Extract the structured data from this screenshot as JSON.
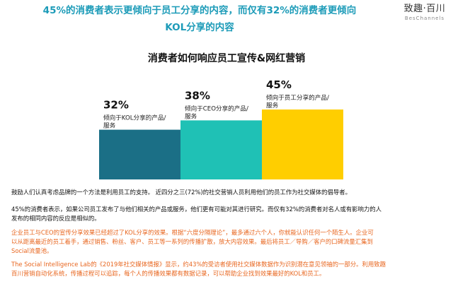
{
  "headline": {
    "line1": "45%的消费者表示更倾向于员工分享的内容，而仅有32%的消费者更倾向",
    "line2": "KOL分享的内容"
  },
  "logo": {
    "main": "致趣·百川",
    "sub": "BesChannels"
  },
  "chart_data": {
    "type": "bar",
    "title": "消费者如何响应员工宣传&网红营销",
    "categories": [
      "倾向于KOL分享的产品/服务",
      "倾向于CEO分享的产品/服务",
      "倾向于员工分享的产品/服务"
    ],
    "values": [
      32,
      38,
      45
    ],
    "value_labels": [
      "32%",
      "38%",
      "45%"
    ],
    "category_label_lines": [
      [
        "倾向于KOL分享的产品/",
        "服务"
      ],
      [
        "倾向于CEO分享的产品/",
        "服务"
      ],
      [
        "倾向于员工分享的产品/",
        "服务"
      ]
    ],
    "colors": [
      "#1b6f86",
      "#1fc1b5",
      "#ffce00"
    ],
    "ylim": [
      0,
      50
    ],
    "grid": false,
    "legend": "none",
    "xlabel": "",
    "ylabel": ""
  },
  "paragraphs": [
    {
      "color": "dark",
      "lines": [
        "鼓励人们认真考虑品牌的一个方法是利用员工的支持。 近四分之三(72%)的社交营销人员利用他们的员工作为社交媒体的倡导者。"
      ]
    },
    {
      "color": "dark",
      "lines": [
        "45%的消费者表示，如果公司员工发布了与他们相关的产品或服务，他们更有可能对其进行研究。而仅有32%的消费者对名人或有影响力的人",
        "发布的相同内容的反应是相似的。"
      ]
    },
    {
      "color": "orange",
      "lines": [
        "企业员工与CEO的宣传分享效果已经超过了KOL分享的效果。根据“六度分隔理论”，最多通过六个人，你就能认识任何一个陌生人。企业可",
        "以从距离最近的员工着手，通过销售、粉丝、客户、员工等一系列的传播扩散，放大内容效果。最后将员工／导购／客户的口碑流量汇集到",
        "Social流量池。"
      ]
    },
    {
      "color": "orange",
      "lines": [
        "The Social Intelligence Lab的《2019年社交媒体情报》显示，约43%的受访者使用社交媒体数据作为识别潜在意见领袖的一部分。利用致趣",
        "百川营销自动化系统，传播过程可以追踪，每个人的传播效果都有数据记录，可以帮助企业找到效果最好的KOL和员工。"
      ]
    }
  ]
}
